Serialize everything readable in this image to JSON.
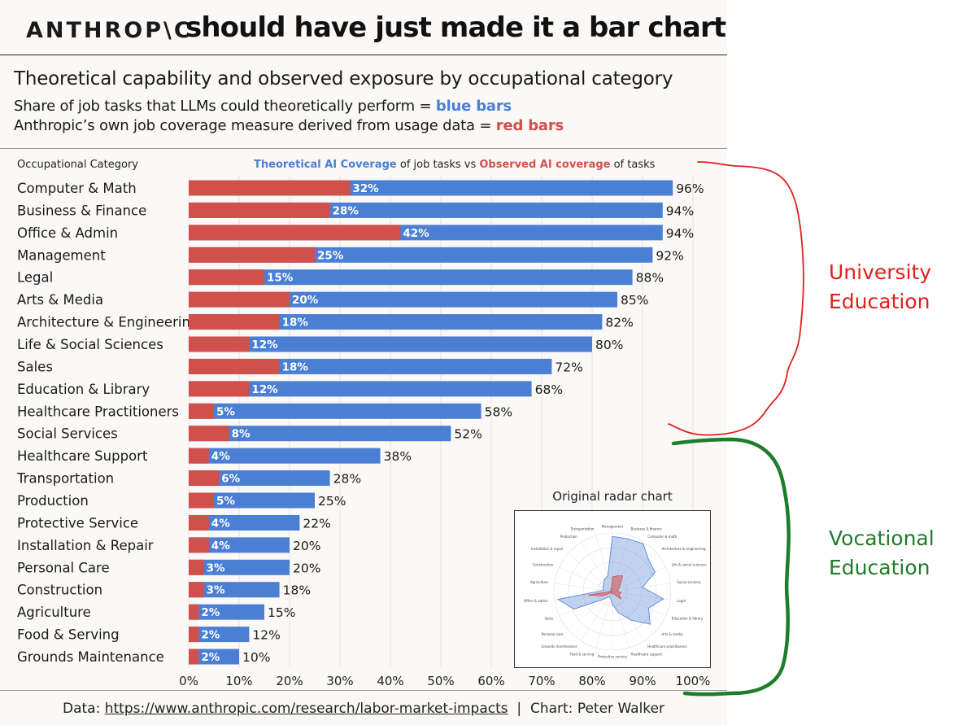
{
  "header": {
    "brand": "ANTHROP\\C",
    "headline": "should have just made it a bar chart"
  },
  "subtitle": "Theoretical capability and observed exposure by occupational category",
  "desc": {
    "line1_prefix": "Share of job tasks that LLMs could theoretically perform = ",
    "line1_highlight": "blue bars",
    "line2_prefix": "Anthropic’s own job coverage measure derived from usage data = ",
    "line2_highlight": "red bars"
  },
  "chart_data": {
    "type": "bar",
    "orientation": "horizontal",
    "category_header": "Occupational Category",
    "title_parts": {
      "theoretical": "Theoretical AI Coverage",
      "mid": " of job tasks vs ",
      "observed": "Observed AI coverage",
      "end": " of tasks"
    },
    "categories": [
      "Computer & Math",
      "Business & Finance",
      "Office & Admin",
      "Management",
      "Legal",
      "Arts & Media",
      "Architecture & Engineering",
      "Life & Social Sciences",
      "Sales",
      "Education & Library",
      "Healthcare Practitioners",
      "Social Services",
      "Healthcare Support",
      "Transportation",
      "Production",
      "Protective Service",
      "Installation & Repair",
      "Personal Care",
      "Construction",
      "Agriculture",
      "Food & Serving",
      "Grounds Maintenance"
    ],
    "series": [
      {
        "name": "Theoretical AI Coverage",
        "color": "#4a7fd4",
        "values": [
          96,
          94,
          94,
          92,
          88,
          85,
          82,
          80,
          72,
          68,
          58,
          52,
          38,
          28,
          25,
          22,
          20,
          20,
          18,
          15,
          12,
          10
        ]
      },
      {
        "name": "Observed AI coverage",
        "color": "#d0504c",
        "values": [
          32,
          28,
          42,
          25,
          15,
          20,
          18,
          12,
          18,
          12,
          5,
          8,
          4,
          6,
          5,
          4,
          4,
          3,
          3,
          2,
          2,
          2
        ]
      }
    ],
    "x_ticks": [
      "0%",
      "10%",
      "20%",
      "30%",
      "40%",
      "50%",
      "60%",
      "70%",
      "80%",
      "90%",
      "100%"
    ],
    "xlim": [
      0,
      100
    ],
    "value_suffix": "%"
  },
  "inset": {
    "title": "Original radar chart",
    "labels": [
      "Management",
      "Business & finance",
      "Computer & math",
      "Architecture & engineering",
      "Life & social sciences",
      "Social services",
      "Legal",
      "Education & library",
      "Arts & media",
      "Healthcare practitioners",
      "Healthcare support",
      "Protective service",
      "Food & serving",
      "Grounds maintenance",
      "Personal care",
      "Sales",
      "Office & admin",
      "Agriculture",
      "Construction",
      "Installation & repair",
      "Production",
      "Transportation"
    ]
  },
  "footer": {
    "prefix": "Data: ",
    "url": "https://www.anthropic.com/research/labor-market-impacts",
    "separator": "  |  ",
    "credit": "Chart: Peter Walker"
  },
  "annotations": {
    "university": [
      "University",
      "Education"
    ],
    "vocational": [
      "Vocational",
      "Education"
    ]
  },
  "colors": {
    "blue": "#4a7fd4",
    "red": "#d0504c",
    "annotation_red": "#e0201c",
    "annotation_green": "#1e7d2a"
  }
}
